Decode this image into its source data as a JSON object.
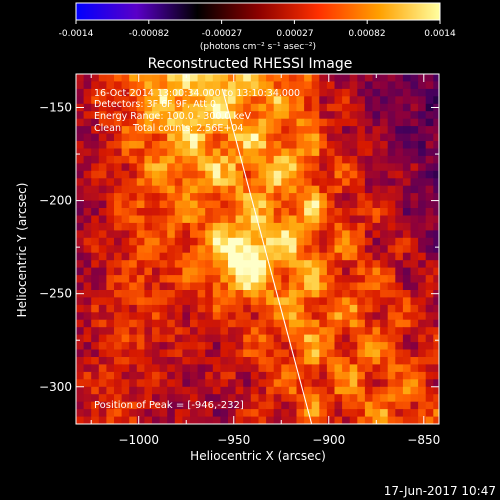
{
  "colorbar": {
    "tick_labels": [
      "-0.0014",
      "-0.00082",
      "-0.00027",
      "0.00027",
      "0.00082",
      "0.0014"
    ],
    "unit_label": "(photons cm⁻² s⁻¹ asec⁻²)",
    "colors": [
      "#0000ff",
      "#5a00c8",
      "#000000",
      "#8b0000",
      "#ff3000",
      "#ffa000",
      "#ffffa0"
    ]
  },
  "chart_data": {
    "type": "heatmap",
    "title": "Reconstructed RHESSI Image",
    "xlabel": "Heliocentric X (arcsec)",
    "ylabel": "Heliocentric Y (arcsec)",
    "xlim": [
      -1033,
      -842
    ],
    "ylim": [
      -320,
      -132
    ],
    "x_ticks": [
      -1000,
      -950,
      -900,
      -850
    ],
    "x_tick_labels": [
      "−1000",
      "−950",
      "−900",
      "−850"
    ],
    "y_ticks": [
      -150,
      -200,
      -250,
      -300
    ],
    "y_tick_labels": [
      "−150",
      "−200",
      "−250",
      "−300"
    ],
    "clim": [
      -0.0014,
      0.0014
    ],
    "grid": false,
    "peak": {
      "x": -946,
      "y": -232
    },
    "limb_line": [
      [
        -956,
        -140
      ],
      [
        -909,
        -320
      ]
    ],
    "annotation_lines": [
      "16-Oct-2014 13:00:34.000 to 13:10:34.000",
      "Detectors: 3F 6F 9F, Att 0",
      "Energy Range: 100.0 - 300.0 keV",
      "Clean    Total counts: 2.56E+04"
    ],
    "peak_text": "Position of Peak = [-946,-232]"
  },
  "footer": {
    "timestamp": "17-Jun-2017 10:47"
  }
}
